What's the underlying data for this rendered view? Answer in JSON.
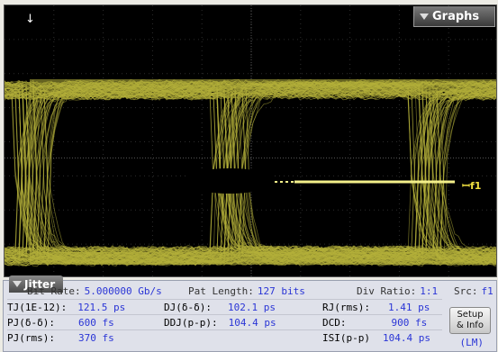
{
  "graphs_tab": {
    "label": "Graphs"
  },
  "markers": {
    "trigger_arrow": "↓",
    "ref_marker": "ꟷf1"
  },
  "jitter_tab": {
    "label": "Jitter"
  },
  "summary": {
    "bit_rate_label": "Bit Rate:",
    "bit_rate_value": "5.000000 Gb/s",
    "pat_length_label": "Pat Length:",
    "pat_length_value": "127 bits",
    "div_ratio_label": "Div Ratio:",
    "div_ratio_value": "1:1",
    "src_label": "Src:",
    "src_value": "f1"
  },
  "measurements": {
    "tj_label": "TJ(1E-12):",
    "tj_value": "121.5 ps",
    "dj_label": "DJ(δ-δ):",
    "dj_value": "102.1 ps",
    "rj_label": "RJ(rms):",
    "rj_value": "1.41 ps",
    "pj_dd_label": "PJ(δ-δ):",
    "pj_dd_value": "600 fs",
    "ddj_label": "DDJ(p-p):",
    "ddj_value": "104.4 ps",
    "dcd_label": "DCD:",
    "dcd_value": "900 fs",
    "pj_rms_label": "PJ(rms):",
    "pj_rms_value": "370 fs",
    "isi_label": "ISI(p-p)",
    "isi_value": "104.4 ps"
  },
  "buttons": {
    "setup_info_line1": "Setup",
    "setup_info_line2": "& Info",
    "lm_label": "(LM)"
  },
  "colors": {
    "trace": "#b5b03a",
    "marker": "#f4f08a"
  }
}
